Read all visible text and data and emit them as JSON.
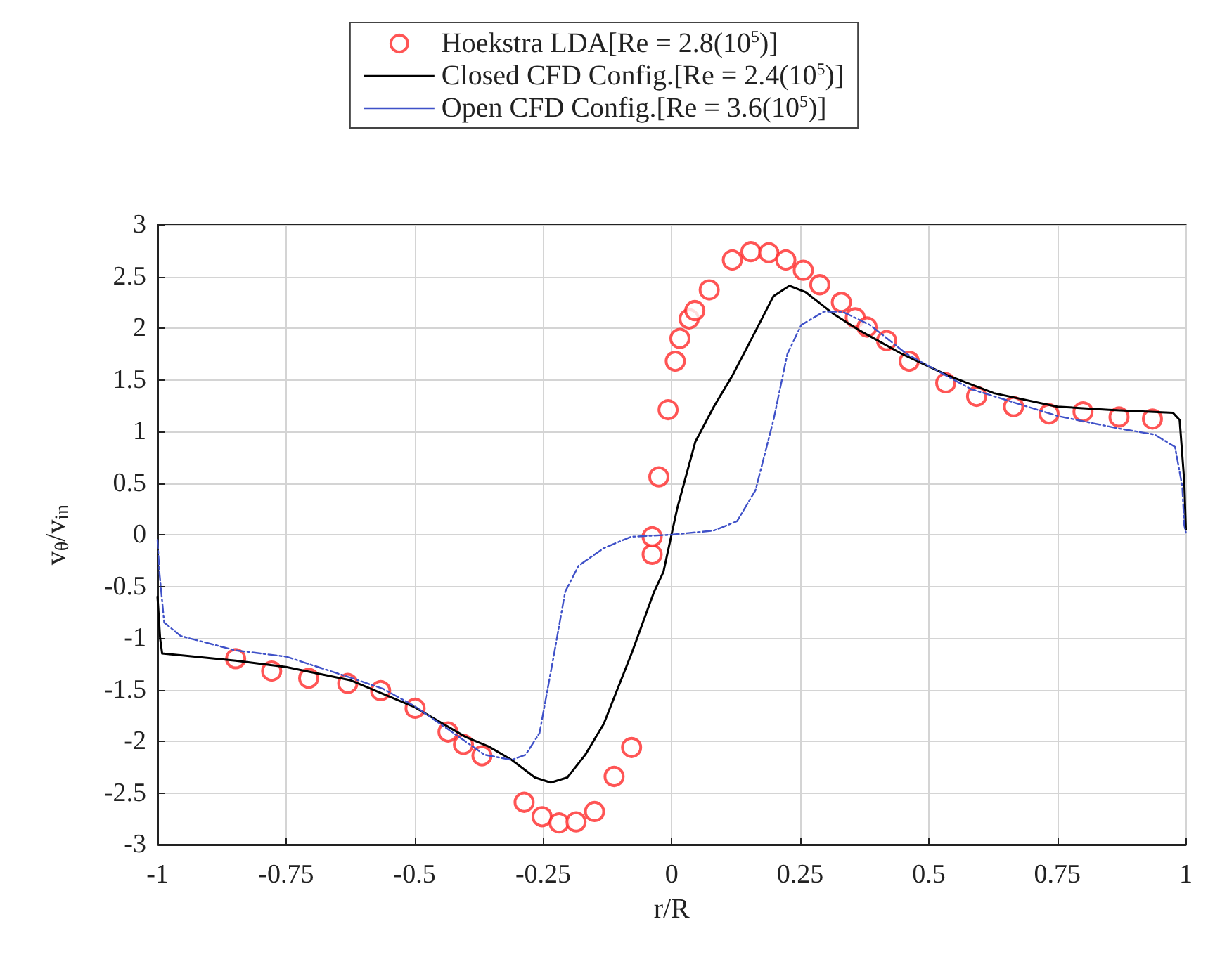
{
  "chart_data": {
    "type": "line",
    "xlabel": "r/R",
    "ylabel": "v$_{θ}$/v$_{in}$",
    "xlim": [
      -1,
      1
    ],
    "xticks": [
      -1,
      -0.75,
      -0.5,
      -0.25,
      0,
      0.25,
      0.5,
      0.75,
      1
    ],
    "ylim": [
      -3,
      3
    ],
    "yticks": [
      -3,
      -2.5,
      -2,
      -1.5,
      -1,
      -0.5,
      0,
      0.5,
      1,
      1.5,
      2,
      2.5,
      3
    ],
    "grid": true,
    "legend": "top",
    "series": [
      {
        "name": "Hoekstra LDA[Re = 2.8(10$^{5}$)]",
        "type": "scatter",
        "marker": "circle",
        "color": "#ff2a2a",
        "x": [
          -0.848,
          -0.778,
          -0.706,
          -0.63,
          -0.566,
          -0.499,
          -0.435,
          -0.405,
          -0.369,
          -0.287,
          -0.252,
          -0.219,
          -0.186,
          -0.15,
          -0.112,
          -0.078,
          -0.038,
          -0.038,
          -0.025,
          -0.007,
          0.007,
          0.016,
          0.034,
          0.045,
          0.073,
          0.118,
          0.154,
          0.189,
          0.222,
          0.256,
          0.288,
          0.33,
          0.357,
          0.38,
          0.418,
          0.462,
          0.533,
          0.593,
          0.665,
          0.734,
          0.8,
          0.87,
          0.935
        ],
        "values": [
          -1.2,
          -1.32,
          -1.39,
          -1.44,
          -1.51,
          -1.68,
          -1.91,
          -2.03,
          -2.14,
          -2.59,
          -2.73,
          -2.79,
          -2.78,
          -2.68,
          -2.34,
          -2.06,
          -0.19,
          -0.02,
          0.56,
          1.21,
          1.68,
          1.9,
          2.09,
          2.17,
          2.37,
          2.66,
          2.74,
          2.73,
          2.66,
          2.56,
          2.42,
          2.25,
          2.1,
          2.01,
          1.88,
          1.68,
          1.47,
          1.34,
          1.24,
          1.17,
          1.19,
          1.14,
          1.12
        ]
      },
      {
        "name": "Closed CFD Config.[Re = 2.4(10$^{5}$)]",
        "line_style": "solid",
        "color": "#000000",
        "x": [
          -1,
          -0.995,
          -0.991,
          -0.848,
          -0.75,
          -0.624,
          -0.5,
          -0.4,
          -0.356,
          -0.311,
          -0.266,
          -0.235,
          -0.203,
          -0.168,
          -0.132,
          -0.078,
          -0.034,
          -0.016,
          0.011,
          0.046,
          0.082,
          0.118,
          0.163,
          0.198,
          0.229,
          0.26,
          0.314,
          0.368,
          0.448,
          0.538,
          0.627,
          0.75,
          0.85,
          0.975,
          0.988,
          0.997,
          1
        ],
        "values": [
          -0.6,
          -1.0,
          -1.15,
          -1.22,
          -1.28,
          -1.41,
          -1.67,
          -1.96,
          -2.05,
          -2.18,
          -2.35,
          -2.4,
          -2.35,
          -2.13,
          -1.83,
          -1.15,
          -0.55,
          -0.36,
          0.26,
          0.9,
          1.24,
          1.54,
          1.97,
          2.31,
          2.41,
          2.35,
          2.14,
          1.97,
          1.75,
          1.54,
          1.37,
          1.24,
          1.21,
          1.18,
          1.11,
          0.51,
          0.05
        ]
      },
      {
        "name": "Open CFD Config.[Re = 3.6(10$^{5}$)]",
        "line_style": "dashed",
        "color": "#3f51c8",
        "x": [
          -1,
          -0.996,
          -0.987,
          -0.955,
          -0.848,
          -0.75,
          -0.633,
          -0.562,
          -0.5,
          -0.436,
          -0.364,
          -0.311,
          -0.284,
          -0.257,
          -0.23,
          -0.207,
          -0.181,
          -0.132,
          -0.079,
          0,
          0.082,
          0.127,
          0.163,
          0.198,
          0.225,
          0.252,
          0.296,
          0.332,
          0.386,
          0.457,
          0.582,
          0.75,
          0.868,
          0.939,
          0.979,
          0.993,
          0.997,
          1
        ],
        "values": [
          -0.05,
          -0.38,
          -0.85,
          -0.98,
          -1.12,
          -1.18,
          -1.37,
          -1.49,
          -1.66,
          -1.88,
          -2.13,
          -2.18,
          -2.13,
          -1.92,
          -1.19,
          -0.55,
          -0.3,
          -0.13,
          -0.02,
          0,
          0.04,
          0.13,
          0.43,
          1.11,
          1.75,
          2.03,
          2.16,
          2.16,
          2.03,
          1.75,
          1.41,
          1.15,
          1.03,
          0.97,
          0.85,
          0.47,
          0.09,
          0.02
        ]
      }
    ]
  }
}
